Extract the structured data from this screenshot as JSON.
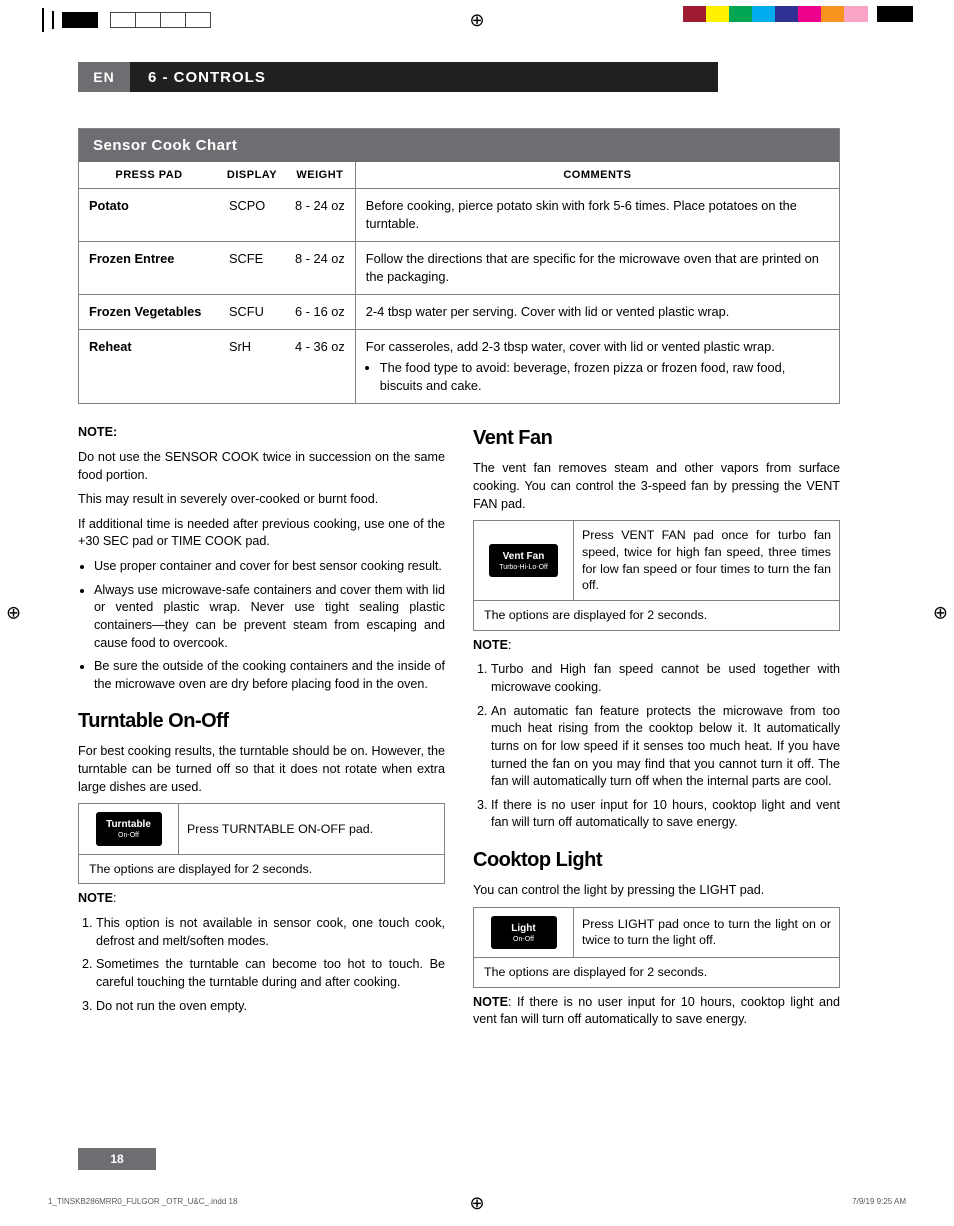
{
  "reg_swatches": [
    "#9e1b32",
    "#fff200",
    "#00a651",
    "#00aeef",
    "#2e3192",
    "#ec008c",
    "#f7941d",
    "#f9a3c6"
  ],
  "header": {
    "lang": "EN",
    "title": "6 - CONTROLS"
  },
  "chart": {
    "title": "Sensor Cook Chart",
    "headers": [
      "PRESS PAD",
      "DISPLAY",
      "WEIGHT",
      "COMMENTS"
    ],
    "rows": [
      {
        "pad": "Potato",
        "display": "SCPO",
        "weight": "8 - 24 oz",
        "comment": "Before cooking, pierce potato skin with fork 5-6 times. Place potatoes on the turntable."
      },
      {
        "pad": "Frozen Entree",
        "display": "SCFE",
        "weight": "8 - 24 oz",
        "comment": "Follow the directions that are specific for the microwave oven that are printed on the packaging."
      },
      {
        "pad": "Frozen Vegetables",
        "display": "SCFU",
        "weight": "6 - 16 oz",
        "comment": "2-4 tbsp water per serving. Cover with lid or vented plastic wrap."
      },
      {
        "pad": "Reheat",
        "display": "SrH",
        "weight": "4 - 36 oz",
        "comment": "For casseroles, add 2-3 tbsp water, cover with lid or vented plastic wrap.",
        "bullet": "The food type to avoid: beverage, frozen pizza or frozen food, raw food, biscuits and cake."
      }
    ]
  },
  "left": {
    "note_label": "NOTE:",
    "note_p1": "Do not use the SENSOR COOK twice in succession on the same food portion.",
    "note_p2": "This may result in severely over-cooked or burnt food.",
    "note_p3": "If additional time is needed after previous cooking, use one of the +30 SEC pad or TIME COOK pad.",
    "bullets": [
      "Use proper container and cover for best sensor cooking result.",
      "Always use microwave-safe containers and cover them with lid or vented plastic wrap. Never use tight sealing plastic containers—they can be prevent steam from escaping and cause food to overcook.",
      "Be sure the outside of the cooking containers and the inside of the microwave oven are dry before placing food in the oven."
    ],
    "turntable_h": "Turntable On-Off",
    "turntable_p": "For best cooking results, the turntable should be on. However, the turntable can be turned off so that it does not rotate when extra large dishes are used.",
    "turntable_btn_l1": "Turntable",
    "turntable_btn_l2": "On-Off",
    "turntable_cell": "Press TURNTABLE ON-OFF pad.",
    "options_row": "The options are displayed for 2 seconds.",
    "tn_note": "NOTE",
    "tn_ol": [
      "This option is not available in sensor cook, one touch cook, defrost and melt/soften modes.",
      "Sometimes the turntable can become too hot to touch. Be careful touching the turntable during and after cooking.",
      "Do not run the oven empty."
    ]
  },
  "right": {
    "vent_h": "Vent Fan",
    "vent_p": "The vent fan removes steam and other vapors from surface cooking. You can control the 3-speed fan by pressing the VENT FAN pad.",
    "vent_btn_l1": "Vent Fan",
    "vent_btn_l2": "Turbo-Hi-Lo-Off",
    "vent_cell": "Press VENT FAN pad once for turbo fan speed, twice for high fan speed, three times for low fan speed or four times to turn the fan off.",
    "options_row": "The options are displayed for 2 seconds.",
    "vn_note": "NOTE",
    "vn_ol": [
      "Turbo and High fan speed cannot be used together with microwave cooking.",
      "An automatic fan feature protects the microwave from too much heat rising from the cooktop below it. It automatically turns on for low speed if it senses too much heat. If you have turned the fan on you may find that you cannot turn it off. The fan will automatically turn off when the internal parts are cool.",
      "If there is no user input for 10 hours, cooktop light and vent fan will turn off automatically to save energy."
    ],
    "cook_h": "Cooktop Light",
    "cook_p": "You can control the light by pressing the LIGHT pad.",
    "cook_btn_l1": "Light",
    "cook_btn_l2": "On-Off",
    "cook_cell": "Press LIGHT pad once to turn the light on or twice to turn the light off.",
    "cook_note": "NOTE",
    "cook_note_txt": ": If there is no user input for 10 hours, cooktop light and vent fan will turn off automatically to save energy."
  },
  "page_num": "18",
  "slug_l": "1_TINSKB286MRR0_FULGOR _OTR_U&C_.indd   18",
  "slug_r": "7/9/19   9:25 AM"
}
